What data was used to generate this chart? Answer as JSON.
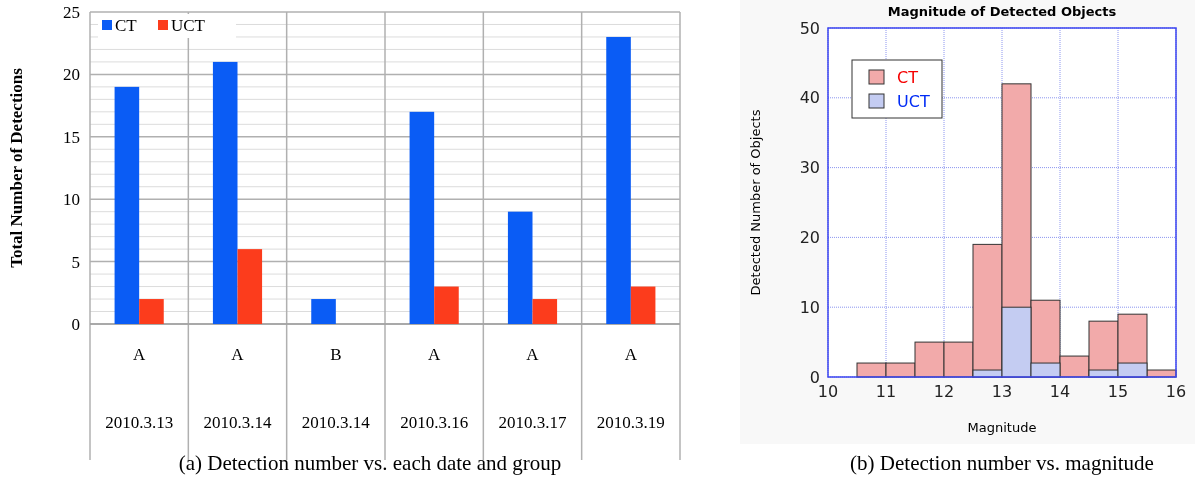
{
  "chart_data": [
    {
      "type": "bar",
      "ylabel": "Total Number of Detections",
      "categories": [
        "A\n2010.3.13",
        "A\n2010.3.14",
        "B\n2010.3.14",
        "A\n2010.3.16",
        "A\n2010.3.17",
        "A\n2010.3.19"
      ],
      "series": [
        {
          "name": "CT",
          "color": "#0a5cf5",
          "values": [
            19,
            21,
            2,
            17,
            9,
            23
          ]
        },
        {
          "name": "UCT",
          "color": "#fc3c1c",
          "values": [
            2,
            6,
            0,
            3,
            2,
            3
          ]
        }
      ],
      "ylim": [
        0,
        25
      ],
      "yticks": [
        0,
        {
          "value": 1,
          "label": null
        },
        {
          "value": 2,
          "label": null
        },
        {
          "value": 3,
          "label": null
        },
        {
          "value": 4,
          "label": null
        },
        5,
        {
          "value": 6,
          "label": null
        },
        {
          "value": 7,
          "label": null
        },
        {
          "value": 8,
          "label": null
        },
        {
          "value": 9,
          "label": null
        },
        10,
        {
          "value": 11,
          "label": null
        },
        {
          "value": 12,
          "label": null
        },
        {
          "value": 13,
          "label": null
        },
        {
          "value": 14,
          "label": null
        },
        15,
        {
          "value": 16,
          "label": null
        },
        {
          "value": 17,
          "label": null
        },
        {
          "value": 18,
          "label": null
        },
        {
          "value": 19,
          "label": null
        },
        20,
        {
          "value": 21,
          "label": null
        },
        {
          "value": 22,
          "label": null
        },
        {
          "value": 23,
          "label": null
        },
        {
          "value": 24,
          "label": null
        },
        25
      ],
      "grid": true,
      "legend": "top left",
      "annotations": [
        "(a) Detection number vs. each date and group"
      ]
    },
    {
      "type": "histogram",
      "title": "Magnitude of Detected Objects",
      "xlabel": "Magnitude",
      "ylabel": "Detected Number of Objects",
      "bins": [
        10.5,
        11,
        11.5,
        12,
        12.5,
        13,
        13.5,
        14,
        14.5,
        15,
        15.5,
        16
      ],
      "series": [
        {
          "name": "CT",
          "color": "#f2aaaa",
          "values": [
            2,
            2,
            5,
            5,
            19,
            42,
            11,
            3,
            8,
            9,
            1
          ]
        },
        {
          "name": "UCT",
          "color": "#c4ccf2",
          "values": [
            0,
            0,
            0,
            0,
            1,
            10,
            2,
            0,
            1,
            2,
            0
          ]
        }
      ],
      "xlim": [
        10,
        16
      ],
      "xticks": [
        10,
        11,
        12,
        13,
        14,
        15,
        16
      ],
      "ylim": [
        0,
        50
      ],
      "yticks": [
        0,
        10,
        20,
        30,
        40,
        50
      ],
      "grid": true,
      "legend": "top left",
      "annotations": [
        "(b) Detection number vs. magnitude"
      ]
    }
  ]
}
